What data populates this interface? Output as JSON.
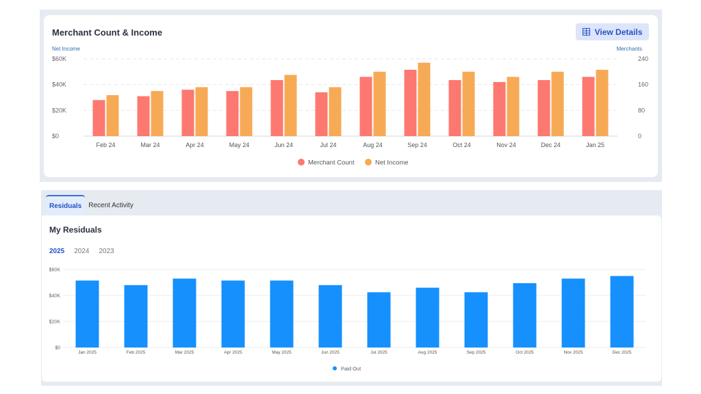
{
  "merchant_card": {
    "title": "Merchant Count & Income",
    "view_details_label": "View Details",
    "left_axis_title": "Net Income",
    "right_axis_title": "Merchants"
  },
  "residuals_section": {
    "tabs": [
      {
        "label": "Residuals",
        "active": true
      },
      {
        "label": "Recent Activity",
        "active": false
      }
    ],
    "title": "My Residuals",
    "years": [
      {
        "label": "2025",
        "active": true
      },
      {
        "label": "2024",
        "active": false
      },
      {
        "label": "2023",
        "active": false
      }
    ]
  },
  "icons": {
    "view_details": "table-grid-icon"
  },
  "colors": {
    "merchant_count": "#fd7870",
    "net_income": "#f7aa55",
    "paid_out": "#1590fd",
    "accent": "#2453c7"
  },
  "chart_data": [
    {
      "type": "bar",
      "title": "Merchant Count & Income",
      "categories": [
        "Feb 24",
        "Mar 24",
        "Apr 24",
        "May 24",
        "Jun 24",
        "Jul 24",
        "Aug 24",
        "Sep 24",
        "Oct 24",
        "Nov 24",
        "Dec 24",
        "Jan 25"
      ],
      "series": [
        {
          "name": "Merchant Count",
          "axis": "right",
          "values": [
            112,
            124,
            144,
            140,
            174,
            136,
            184,
            206,
            174,
            168,
            174,
            184
          ]
        },
        {
          "name": "Net Income",
          "axis": "left",
          "values": [
            31800,
            35000,
            38000,
            38000,
            47500,
            38000,
            50000,
            57000,
            50000,
            46000,
            50000,
            51500
          ]
        }
      ],
      "left_axis": {
        "label": "Net Income",
        "ylim": [
          0,
          60000
        ],
        "ticks": [
          "$0",
          "$20K",
          "$40K",
          "$60K"
        ]
      },
      "right_axis": {
        "label": "Merchants",
        "ylim": [
          0,
          240
        ],
        "ticks": [
          "0",
          "80",
          "160",
          "240"
        ]
      },
      "legend_position": "bottom",
      "grid": true
    },
    {
      "type": "bar",
      "categories": [
        "Jan 2025",
        "Feb 2025",
        "Mar 2025",
        "Apr 2025",
        "May 2025",
        "Jun 2025",
        "Jul 2025",
        "Aug 2025",
        "Sep 2025",
        "Oct 2025",
        "Nov 2025",
        "Dec 2025"
      ],
      "series": [
        {
          "name": "Paid Out",
          "values": [
            51500,
            48000,
            53000,
            51500,
            51500,
            48000,
            42500,
            46000,
            42500,
            49500,
            53000,
            55000
          ]
        }
      ],
      "ylim": [
        0,
        60000
      ],
      "ticks": [
        "$0",
        "$20K",
        "$40K",
        "$60K"
      ],
      "legend_position": "bottom",
      "grid": true
    }
  ]
}
